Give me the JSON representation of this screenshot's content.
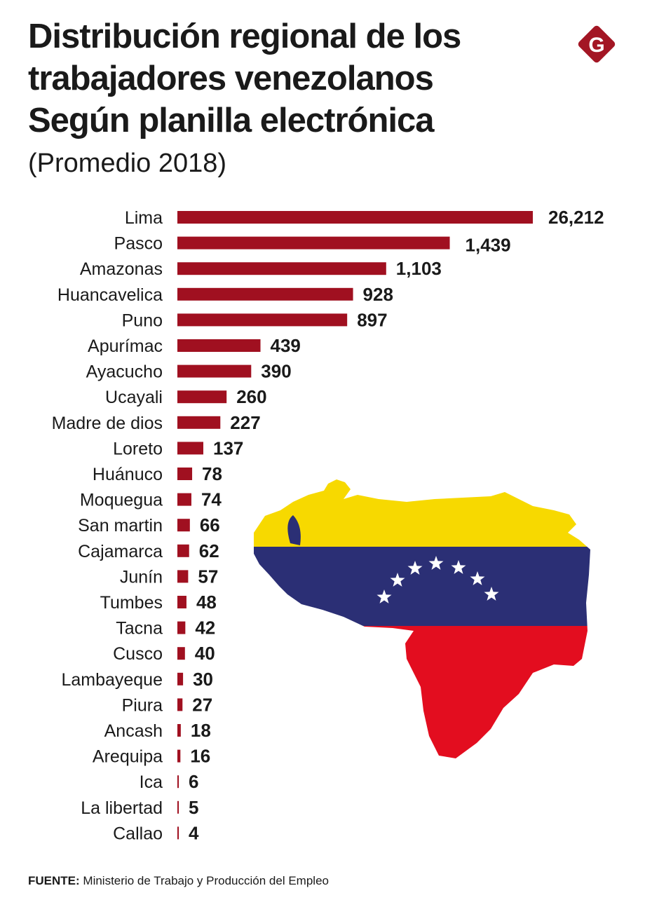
{
  "header": {
    "title_lines": [
      "Distribución regional de los",
      "trabajadores venezolanos",
      "Según planilla electrónica"
    ],
    "subtitle": "(Promedio 2018)",
    "logo_letter": "G"
  },
  "colors": {
    "bar": "#a01020",
    "logo": "#a31624",
    "flag_yellow": "#f7d900",
    "flag_blue": "#2b2f75",
    "flag_red": "#e30d1f"
  },
  "chart_data": {
    "type": "bar",
    "orientation": "horizontal",
    "categories": [
      "Lima",
      "Pasco",
      "Amazonas",
      "Huancavelica",
      "Puno",
      "Apurímac",
      "Ayacucho",
      "Ucayali",
      "Madre de dios",
      "Loreto",
      "Huánuco",
      "Moquegua",
      "San martin",
      "Cajamarca",
      "Junín",
      "Tumbes",
      "Tacna",
      "Cusco",
      "Lambayeque",
      "Piura",
      "Ancash",
      "Arequipa",
      "Ica",
      "La libertad",
      "Callao"
    ],
    "values": [
      26212,
      1439,
      1103,
      928,
      897,
      439,
      390,
      260,
      227,
      137,
      78,
      74,
      66,
      62,
      57,
      48,
      42,
      40,
      30,
      27,
      18,
      16,
      6,
      5,
      4
    ],
    "value_labels": [
      "26,212",
      "1,439",
      "1,103",
      "928",
      "897",
      "439",
      "390",
      "260",
      "227",
      "137",
      "78",
      "74",
      "66",
      "62",
      "57",
      "48",
      "42",
      "40",
      "30",
      "27",
      "18",
      "16",
      "6",
      "5",
      "4"
    ],
    "axis_break": "Lima bar truncated"
  },
  "footer": {
    "label": "FUENTE:",
    "text": "Ministerio de Trabajo y Producción del Empleo"
  }
}
